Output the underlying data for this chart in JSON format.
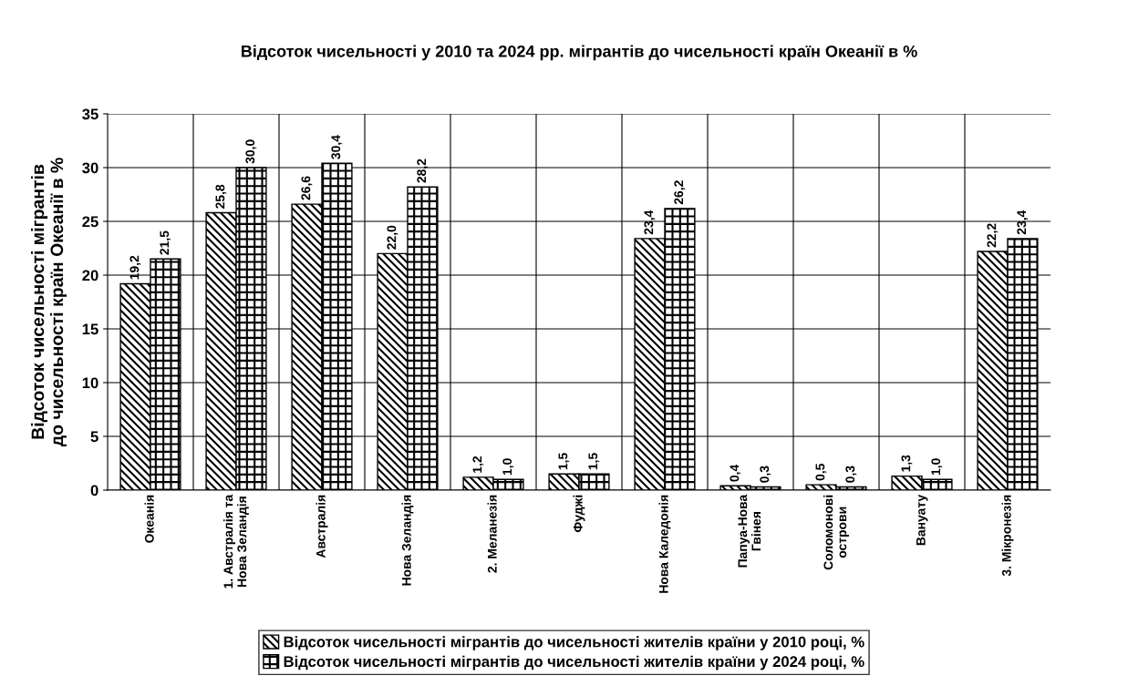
{
  "chart_data": {
    "type": "bar",
    "title": "Відсоток чисельності у 2010 та 2024 рр. мігрантів до чисельності країн Океанії в %",
    "ylabel": "Відсоток чисельності мігрантів до чисельності країн Океанії в %",
    "categories": [
      "Океанія",
      "1. Австралія та Нова Зеландія",
      "Австралія",
      "Нова Зеландія",
      "2. Меланезія",
      "Фуджі",
      "Нова Каледонія",
      "Папуа-Нова Гвінея",
      "Соломонові острови",
      "Вануату",
      "3. Мікронезія"
    ],
    "series": [
      {
        "name": "Відсоток чисельності мігрантів до чисельності жителів країни у 2010 році, %",
        "color": "#000000",
        "values": [
          19.2,
          25.8,
          26.6,
          22.0,
          1.2,
          1.5,
          23.4,
          0.4,
          0.5,
          1.3,
          22.2
        ],
        "value_labels": [
          "19,2",
          "25,8",
          "26,6",
          "22,0",
          "1,2",
          "1,5",
          "23,4",
          "0,4",
          "0,5",
          "1,3",
          "22,2"
        ]
      },
      {
        "name": "Відсоток чисельності мігрантів до чисельності жителів країни у 2024 році, %",
        "color": "#000000",
        "values": [
          21.5,
          30.0,
          30.4,
          28.2,
          1.0,
          1.5,
          26.2,
          0.3,
          0.3,
          1.0,
          23.4
        ],
        "value_labels": [
          "21,5",
          "30,0",
          "30,4",
          "28,2",
          "1,0",
          "1,5",
          "26,2",
          "0,3",
          "0,3",
          "1,0",
          "23,4"
        ]
      }
    ],
    "ylim": [
      0,
      35
    ],
    "yticks": [
      0,
      5,
      10,
      15,
      20,
      25,
      30,
      35
    ],
    "grid": true,
    "legend": "bottom"
  }
}
